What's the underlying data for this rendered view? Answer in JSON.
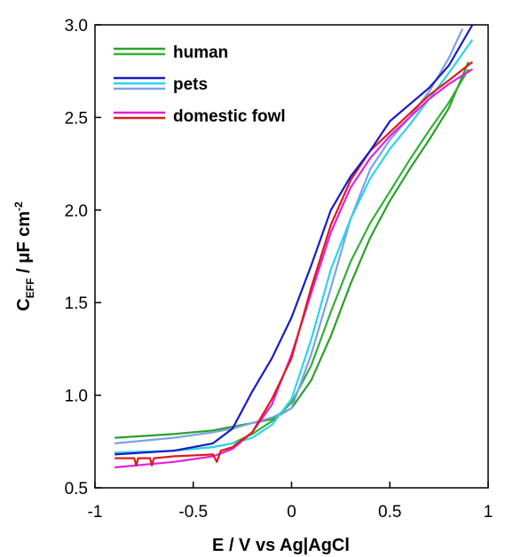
{
  "chart_data": {
    "type": "line",
    "xlabel": "E / V vs Ag|AgCl",
    "ylabel": {
      "main": "C",
      "sub": "EFF",
      "rest": " / μF cm",
      "sup": "-2"
    },
    "xlim": [
      -1,
      1
    ],
    "ylim": [
      0.5,
      3.0
    ],
    "xticks": [
      -1,
      -0.5,
      0,
      0.5,
      1
    ],
    "xtick_labels": [
      "-1",
      "-0.5",
      "0",
      "0.5",
      "1"
    ],
    "yticks": [
      0.5,
      1.0,
      1.5,
      2.0,
      2.5,
      3.0
    ],
    "ytick_labels": [
      "0.5",
      "1.0",
      "1.5",
      "2.0",
      "2.5",
      "3.0"
    ],
    "grid": false,
    "legend_position": "top-left",
    "legend": [
      {
        "label": "human",
        "colors": [
          "#2aa02a",
          "#33b033"
        ]
      },
      {
        "label": "pets",
        "colors": [
          "#1a1ac8",
          "#2ad4e8",
          "#7aa2e8"
        ]
      },
      {
        "label": "domestic fowl",
        "colors": [
          "#e020e0",
          "#e01a1a"
        ]
      }
    ],
    "series": [
      {
        "color": "#2aa02a",
        "x": [
          -0.9,
          -0.6,
          -0.4,
          -0.3,
          -0.2,
          -0.1,
          0.0,
          0.1,
          0.2,
          0.3,
          0.4,
          0.5,
          0.6,
          0.7,
          0.8,
          0.9
        ],
        "y": [
          0.77,
          0.79,
          0.81,
          0.83,
          0.85,
          0.87,
          0.93,
          1.08,
          1.32,
          1.6,
          1.85,
          2.05,
          2.22,
          2.38,
          2.55,
          2.8
        ]
      },
      {
        "color": "#33b033",
        "x": [
          -0.9,
          -0.6,
          -0.4,
          -0.3,
          -0.2,
          -0.1,
          0.0,
          0.1,
          0.2,
          0.3,
          0.4,
          0.5,
          0.6,
          0.7,
          0.8,
          0.9
        ],
        "y": [
          0.69,
          0.7,
          0.72,
          0.74,
          0.79,
          0.86,
          0.96,
          1.16,
          1.45,
          1.72,
          1.93,
          2.1,
          2.27,
          2.43,
          2.58,
          2.76
        ]
      },
      {
        "color": "#7aa2e8",
        "x": [
          -0.9,
          -0.6,
          -0.4,
          -0.3,
          -0.2,
          -0.1,
          0.0,
          0.1,
          0.2,
          0.3,
          0.4,
          0.5,
          0.6,
          0.7,
          0.8,
          0.87
        ],
        "y": [
          0.74,
          0.77,
          0.8,
          0.82,
          0.85,
          0.88,
          0.93,
          1.22,
          1.58,
          1.95,
          2.22,
          2.38,
          2.5,
          2.64,
          2.82,
          2.98
        ]
      },
      {
        "color": "#2ad4e8",
        "x": [
          -0.9,
          -0.6,
          -0.4,
          -0.3,
          -0.2,
          -0.1,
          0.0,
          0.1,
          0.2,
          0.3,
          0.4,
          0.5,
          0.6,
          0.7,
          0.8,
          0.92
        ],
        "y": [
          0.69,
          0.7,
          0.72,
          0.74,
          0.77,
          0.84,
          0.98,
          1.3,
          1.68,
          1.95,
          2.17,
          2.33,
          2.46,
          2.6,
          2.74,
          2.92
        ]
      },
      {
        "color": "#e020e0",
        "x": [
          -0.9,
          -0.6,
          -0.4,
          -0.3,
          -0.2,
          -0.1,
          0.0,
          0.1,
          0.2,
          0.3,
          0.4,
          0.5,
          0.6,
          0.7,
          0.8,
          0.92
        ],
        "y": [
          0.61,
          0.64,
          0.67,
          0.71,
          0.8,
          0.95,
          1.22,
          1.55,
          1.88,
          2.12,
          2.28,
          2.4,
          2.5,
          2.6,
          2.68,
          2.76
        ]
      },
      {
        "color": "#e01a1a",
        "x": [
          -0.9,
          -0.8,
          -0.79,
          -0.78,
          -0.72,
          -0.71,
          -0.7,
          -0.6,
          -0.4,
          -0.38,
          -0.36,
          -0.3,
          -0.2,
          -0.1,
          0.0,
          0.1,
          0.2,
          0.3,
          0.4,
          0.5,
          0.6,
          0.7,
          0.8,
          0.92
        ],
        "y": [
          0.66,
          0.66,
          0.62,
          0.66,
          0.66,
          0.62,
          0.66,
          0.67,
          0.68,
          0.64,
          0.7,
          0.72,
          0.8,
          0.98,
          1.2,
          1.58,
          1.92,
          2.16,
          2.32,
          2.42,
          2.52,
          2.62,
          2.7,
          2.8
        ]
      },
      {
        "color": "#1a1ac8",
        "x": [
          -0.9,
          -0.6,
          -0.4,
          -0.3,
          -0.25,
          -0.2,
          -0.1,
          0.0,
          0.1,
          0.2,
          0.3,
          0.4,
          0.5,
          0.6,
          0.7,
          0.8,
          0.92
        ],
        "y": [
          0.68,
          0.7,
          0.74,
          0.82,
          0.92,
          1.02,
          1.2,
          1.42,
          1.7,
          2.0,
          2.18,
          2.32,
          2.48,
          2.57,
          2.66,
          2.78,
          3.0
        ]
      }
    ]
  }
}
